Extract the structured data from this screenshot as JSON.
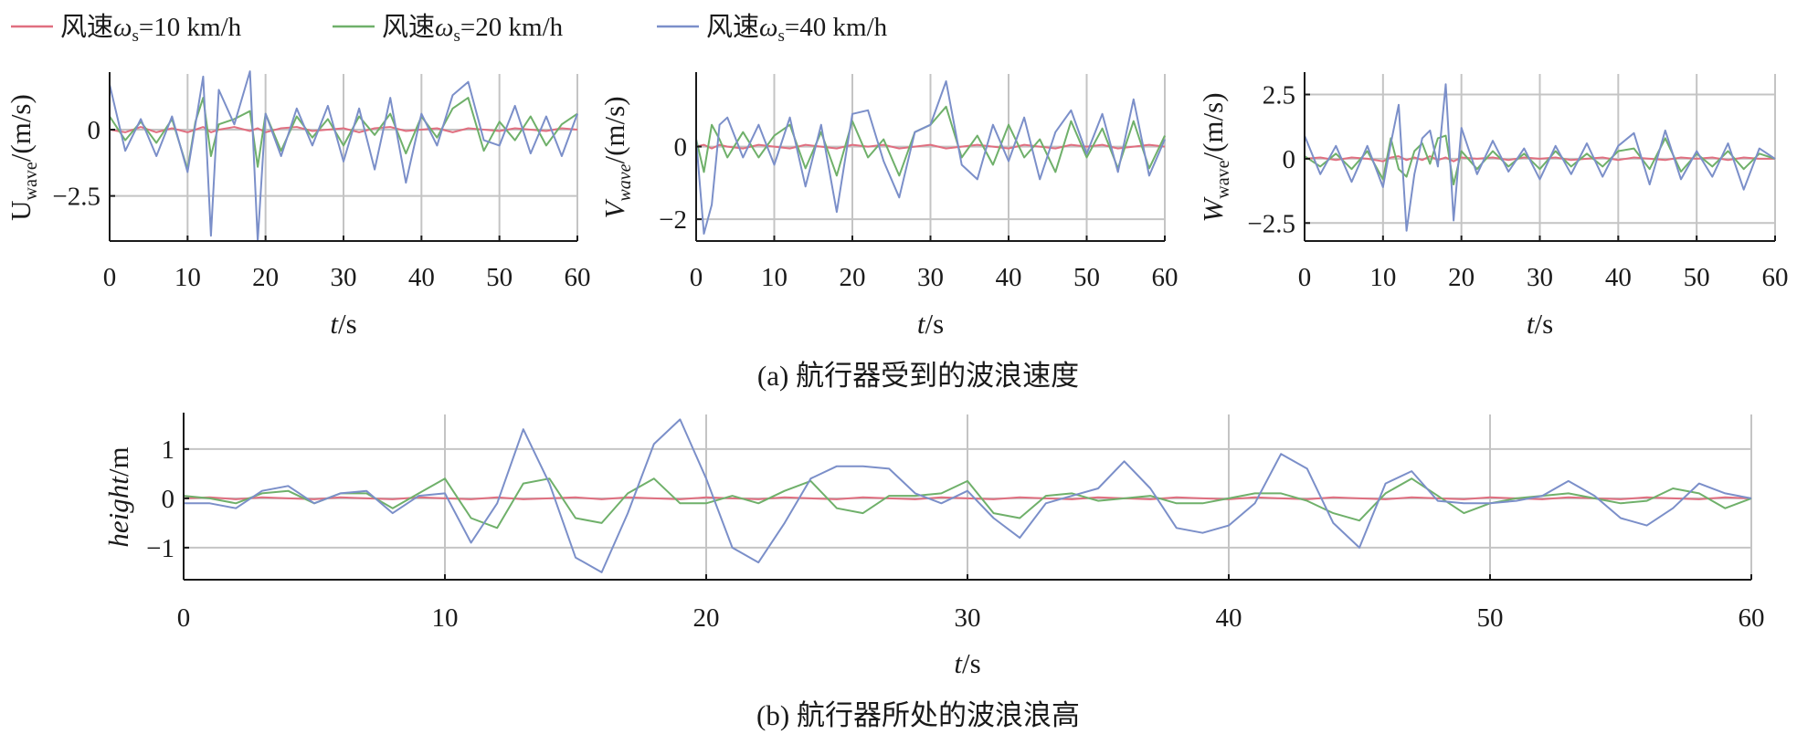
{
  "legend": {
    "entries": [
      {
        "prefix": "风速",
        "symbol": "ω",
        "sub": "s",
        "suffix": "=10 km/h",
        "color": "#e06f80"
      },
      {
        "prefix": "风速",
        "symbol": "ω",
        "sub": "s",
        "suffix": "=20 km/h",
        "color": "#6fb06a"
      },
      {
        "prefix": "风速",
        "symbol": "ω",
        "sub": "s",
        "suffix": "=40 km/h",
        "color": "#7b8fc9"
      }
    ]
  },
  "captions": {
    "a": "(a) 航行器受到的波浪速度",
    "b": "(b) 航行器所处的波浪浪高"
  },
  "chart_data": [
    {
      "id": "u",
      "type": "line",
      "ylabel": {
        "main": "U",
        "sub": "wave",
        "unit": "/(m/s)",
        "main_italic": false,
        "sub_italic": false
      },
      "xlabel": {
        "main": "t",
        "unit": "/s"
      },
      "xlim": [
        0,
        60
      ],
      "ylim": [
        -4.2,
        2.1
      ],
      "xticks": [
        "0",
        "10",
        "20",
        "30",
        "40",
        "50",
        "60"
      ],
      "yticks": [
        {
          "value": 0,
          "label": "0"
        },
        {
          "value": -2.5,
          "label": "−2.5"
        }
      ],
      "grid": true,
      "x": [
        0,
        2,
        4,
        6,
        8,
        10,
        11,
        12,
        13,
        14,
        16,
        18,
        19,
        20,
        22,
        24,
        26,
        28,
        30,
        32,
        34,
        36,
        38,
        40,
        42,
        44,
        46,
        48,
        50,
        52,
        54,
        56,
        58,
        60
      ],
      "series": [
        {
          "name": "风速ωs=10 km/h",
          "color": "#e06f80",
          "values": [
            0,
            -0.1,
            0.1,
            -0.1,
            0.05,
            -0.1,
            0,
            0.1,
            -0.1,
            0,
            0.1,
            -0.05,
            0.05,
            -0.1,
            0.05,
            0.1,
            -0.05,
            0,
            0.05,
            -0.1,
            0.05,
            0.1,
            -0.05,
            0,
            0.05,
            -0.1,
            0.05,
            0,
            -0.05,
            0.05,
            0,
            -0.05,
            0.05,
            0
          ]
        },
        {
          "name": "风速ωs=20 km/h",
          "color": "#6fb06a",
          "values": [
            0.5,
            -0.4,
            0.3,
            -0.5,
            0.4,
            -1.5,
            0.3,
            1.2,
            -1.0,
            0.2,
            0.4,
            0.7,
            -1.4,
            0.6,
            -0.8,
            0.5,
            -0.3,
            0.4,
            -0.6,
            0.5,
            -0.2,
            0.6,
            -0.9,
            0.5,
            -0.3,
            0.8,
            1.2,
            -0.8,
            0.3,
            -0.4,
            0.5,
            -0.6,
            0.2,
            0.6
          ]
        },
        {
          "name": "风速ωs=40 km/h",
          "color": "#7b8fc9",
          "values": [
            1.7,
            -0.8,
            0.4,
            -1.0,
            0.5,
            -1.6,
            0.2,
            2.0,
            -4.0,
            1.5,
            0.2,
            2.2,
            -4.2,
            0.6,
            -1.0,
            0.8,
            -0.6,
            0.9,
            -1.2,
            0.8,
            -1.5,
            1.2,
            -2.0,
            0.6,
            -0.6,
            1.3,
            1.8,
            -0.4,
            -0.6,
            0.9,
            -0.9,
            0.5,
            -1.0,
            0.6
          ]
        }
      ]
    },
    {
      "id": "v",
      "type": "line",
      "ylabel": {
        "main": "V",
        "sub": "wave",
        "unit": "/(m/s)",
        "main_italic": true,
        "sub_italic": true
      },
      "xlabel": {
        "main": "t",
        "unit": "/s"
      },
      "xlim": [
        0,
        60
      ],
      "ylim": [
        -2.6,
        2.0
      ],
      "xticks": [
        "0",
        "10",
        "20",
        "30",
        "40",
        "50",
        "60"
      ],
      "yticks": [
        {
          "value": 0,
          "label": "0"
        },
        {
          "value": -2,
          "label": "−2"
        }
      ],
      "grid": true,
      "x": [
        0,
        1,
        2,
        3,
        4,
        6,
        8,
        10,
        12,
        14,
        16,
        18,
        20,
        22,
        24,
        26,
        28,
        30,
        32,
        34,
        36,
        38,
        40,
        42,
        44,
        46,
        48,
        50,
        52,
        54,
        56,
        58,
        60
      ],
      "series": [
        {
          "name": "风速ωs=10 km/h",
          "color": "#e06f80",
          "values": [
            0,
            0.05,
            -0.05,
            0.05,
            0,
            -0.05,
            0.05,
            0,
            -0.05,
            0.05,
            0,
            -0.05,
            0.05,
            0,
            0.05,
            -0.05,
            0,
            0.05,
            -0.05,
            0,
            0.05,
            0,
            -0.05,
            0.05,
            0,
            -0.05,
            0.05,
            0,
            0.05,
            -0.05,
            0,
            0.05,
            0
          ]
        },
        {
          "name": "风速ωs=20 km/h",
          "color": "#6fb06a",
          "values": [
            0.2,
            -0.7,
            0.6,
            0.2,
            -0.3,
            0.4,
            -0.3,
            0.3,
            0.6,
            -0.6,
            0.4,
            -0.8,
            0.7,
            -0.3,
            0.2,
            -0.8,
            0.4,
            0.6,
            1.1,
            -0.3,
            0.3,
            -0.5,
            0.6,
            -0.3,
            0.2,
            -0.7,
            0.7,
            -0.3,
            0.5,
            -0.6,
            0.7,
            -0.6,
            0.3
          ]
        },
        {
          "name": "风速ωs=40 km/h",
          "color": "#7b8fc9",
          "values": [
            0.2,
            -2.4,
            -1.6,
            0.6,
            0.8,
            -0.3,
            0.6,
            -0.5,
            0.8,
            -1.1,
            0.6,
            -1.8,
            0.9,
            1.0,
            -0.4,
            -1.4,
            0.4,
            0.6,
            1.8,
            -0.5,
            -0.9,
            0.6,
            -0.4,
            0.8,
            -0.9,
            0.4,
            1.0,
            -0.2,
            0.9,
            -0.7,
            1.3,
            -0.8,
            0.2
          ]
        }
      ]
    },
    {
      "id": "w",
      "type": "line",
      "ylabel": {
        "main": "W",
        "sub": "wave",
        "unit": "/(m/s)",
        "main_italic": true,
        "sub_italic": false
      },
      "xlabel": {
        "main": "t",
        "unit": "/s"
      },
      "xlim": [
        0,
        60
      ],
      "ylim": [
        -3.2,
        3.3
      ],
      "xticks": [
        "0",
        "10",
        "20",
        "30",
        "40",
        "50",
        "60"
      ],
      "yticks": [
        {
          "value": 2.5,
          "label": "2.5"
        },
        {
          "value": 0,
          "label": "0"
        },
        {
          "value": -2.5,
          "label": "−2.5"
        }
      ],
      "grid": true,
      "x": [
        0,
        2,
        4,
        6,
        8,
        10,
        11,
        12,
        13,
        14,
        15,
        16,
        17,
        18,
        19,
        20,
        22,
        24,
        26,
        28,
        30,
        32,
        34,
        36,
        38,
        40,
        42,
        44,
        46,
        48,
        50,
        52,
        54,
        56,
        58,
        60
      ],
      "series": [
        {
          "name": "风速ωs=10 km/h",
          "color": "#e06f80",
          "values": [
            0,
            0.05,
            -0.05,
            0.05,
            0,
            -0.1,
            0.05,
            0.1,
            -0.05,
            0.05,
            -0.05,
            0.1,
            -0.05,
            0.05,
            -0.1,
            0.05,
            0,
            0.05,
            -0.05,
            0.05,
            0,
            0.05,
            -0.05,
            0,
            0.05,
            -0.05,
            0.05,
            0,
            -0.05,
            0.05,
            0,
            0.05,
            -0.05,
            0.05,
            0,
            0
          ]
        },
        {
          "name": "风速ωs=20 km/h",
          "color": "#6fb06a",
          "values": [
            0.1,
            -0.3,
            0.2,
            -0.4,
            0.3,
            -0.8,
            0.8,
            -0.4,
            -0.7,
            0.3,
            0.6,
            -0.2,
            0.8,
            0.9,
            -1.0,
            0.3,
            -0.4,
            0.3,
            -0.3,
            0.2,
            -0.4,
            0.3,
            -0.3,
            0.2,
            -0.3,
            0.3,
            0.4,
            -0.4,
            0.8,
            -0.5,
            0.2,
            -0.3,
            0.3,
            -0.4,
            0.2,
            0
          ]
        },
        {
          "name": "风速ωs=40 km/h",
          "color": "#7b8fc9",
          "values": [
            0.9,
            -0.6,
            0.5,
            -0.9,
            0.5,
            -1.1,
            0.6,
            2.1,
            -2.8,
            -0.6,
            0.8,
            1.1,
            -0.3,
            2.9,
            -2.4,
            1.2,
            -0.6,
            0.7,
            -0.5,
            0.4,
            -0.8,
            0.5,
            -0.6,
            0.6,
            -0.7,
            0.5,
            1.0,
            -1.0,
            1.1,
            -0.8,
            0.3,
            -0.7,
            0.6,
            -1.2,
            0.4,
            0
          ]
        }
      ]
    },
    {
      "id": "h",
      "type": "line",
      "ylabel": {
        "main": "height",
        "sub": "",
        "unit": "/m",
        "main_italic": true,
        "sub_italic": false
      },
      "xlabel": {
        "main": "t",
        "unit": "/s"
      },
      "xlim": [
        0,
        60
      ],
      "ylim": [
        -1.65,
        1.7
      ],
      "xticks": [
        "0",
        "10",
        "20",
        "30",
        "40",
        "50",
        "60"
      ],
      "yticks": [
        {
          "value": 1,
          "label": "1"
        },
        {
          "value": 0,
          "label": "0"
        },
        {
          "value": -1,
          "label": "−1"
        }
      ],
      "grid": true,
      "x": [
        0,
        1,
        2,
        3,
        4,
        5,
        6,
        7,
        8,
        9,
        10,
        11,
        12,
        13,
        14,
        15,
        16,
        17,
        18,
        19,
        20,
        21,
        22,
        23,
        24,
        25,
        26,
        27,
        28,
        29,
        30,
        31,
        32,
        33,
        34,
        35,
        36,
        37,
        38,
        39,
        40,
        41,
        42,
        43,
        44,
        45,
        46,
        47,
        48,
        49,
        50,
        51,
        52,
        53,
        54,
        55,
        56,
        57,
        58,
        59,
        60
      ],
      "series": [
        {
          "name": "风速ωs=10 km/h",
          "color": "#e06f80",
          "values": [
            0,
            0.02,
            -0.02,
            0.02,
            0,
            -0.02,
            0.02,
            0,
            -0.02,
            0.02,
            0,
            -0.02,
            0.02,
            -0.02,
            0,
            0.02,
            -0.02,
            0.02,
            0,
            -0.02,
            0.02,
            0,
            -0.02,
            0.02,
            0,
            -0.02,
            0.02,
            0,
            -0.02,
            0.02,
            0,
            -0.02,
            0.02,
            0,
            -0.02,
            0.02,
            0,
            -0.02,
            0.02,
            0,
            -0.02,
            0.02,
            0,
            -0.02,
            0.02,
            0,
            -0.02,
            0.02,
            0,
            -0.02,
            0.02,
            0,
            -0.02,
            0.02,
            0,
            -0.02,
            0.02,
            0,
            -0.02,
            0.02,
            0
          ]
        },
        {
          "name": "风速ωs=20 km/h",
          "color": "#6fb06a",
          "values": [
            0.05,
            0,
            -0.1,
            0.1,
            0.15,
            -0.1,
            0.1,
            0.1,
            -0.2,
            0.1,
            0.4,
            -0.4,
            -0.6,
            0.3,
            0.4,
            -0.4,
            -0.5,
            0.1,
            0.4,
            -0.1,
            -0.1,
            0.05,
            -0.1,
            0.15,
            0.35,
            -0.2,
            -0.3,
            0.05,
            0.05,
            0.1,
            0.35,
            -0.3,
            -0.4,
            0.05,
            0.1,
            -0.05,
            0,
            0.05,
            -0.1,
            -0.1,
            0.0,
            0.1,
            0.1,
            -0.05,
            -0.3,
            -0.45,
            0.1,
            0.4,
            0.05,
            -0.3,
            -0.1,
            0,
            0.05,
            0.1,
            0,
            -0.1,
            -0.05,
            0.2,
            0.1,
            -0.2,
            0
          ]
        },
        {
          "name": "风速ωs=40 km/h",
          "color": "#7b8fc9",
          "values": [
            -0.1,
            -0.1,
            -0.2,
            0.15,
            0.25,
            -0.1,
            0.1,
            0.15,
            -0.3,
            0.05,
            0.1,
            -0.9,
            -0.1,
            1.4,
            0.3,
            -1.2,
            -1.5,
            -0.3,
            1.1,
            1.6,
            0.4,
            -1.0,
            -1.3,
            -0.5,
            0.4,
            0.65,
            0.65,
            0.6,
            0.1,
            -0.1,
            0.15,
            -0.4,
            -0.8,
            -0.1,
            0.05,
            0.2,
            0.75,
            0.2,
            -0.6,
            -0.7,
            -0.55,
            -0.1,
            0.9,
            0.6,
            -0.5,
            -1.0,
            0.3,
            0.55,
            -0.05,
            -0.1,
            -0.1,
            -0.05,
            0.05,
            0.35,
            0.05,
            -0.4,
            -0.55,
            -0.2,
            0.3,
            0.1,
            0
          ]
        }
      ]
    }
  ]
}
